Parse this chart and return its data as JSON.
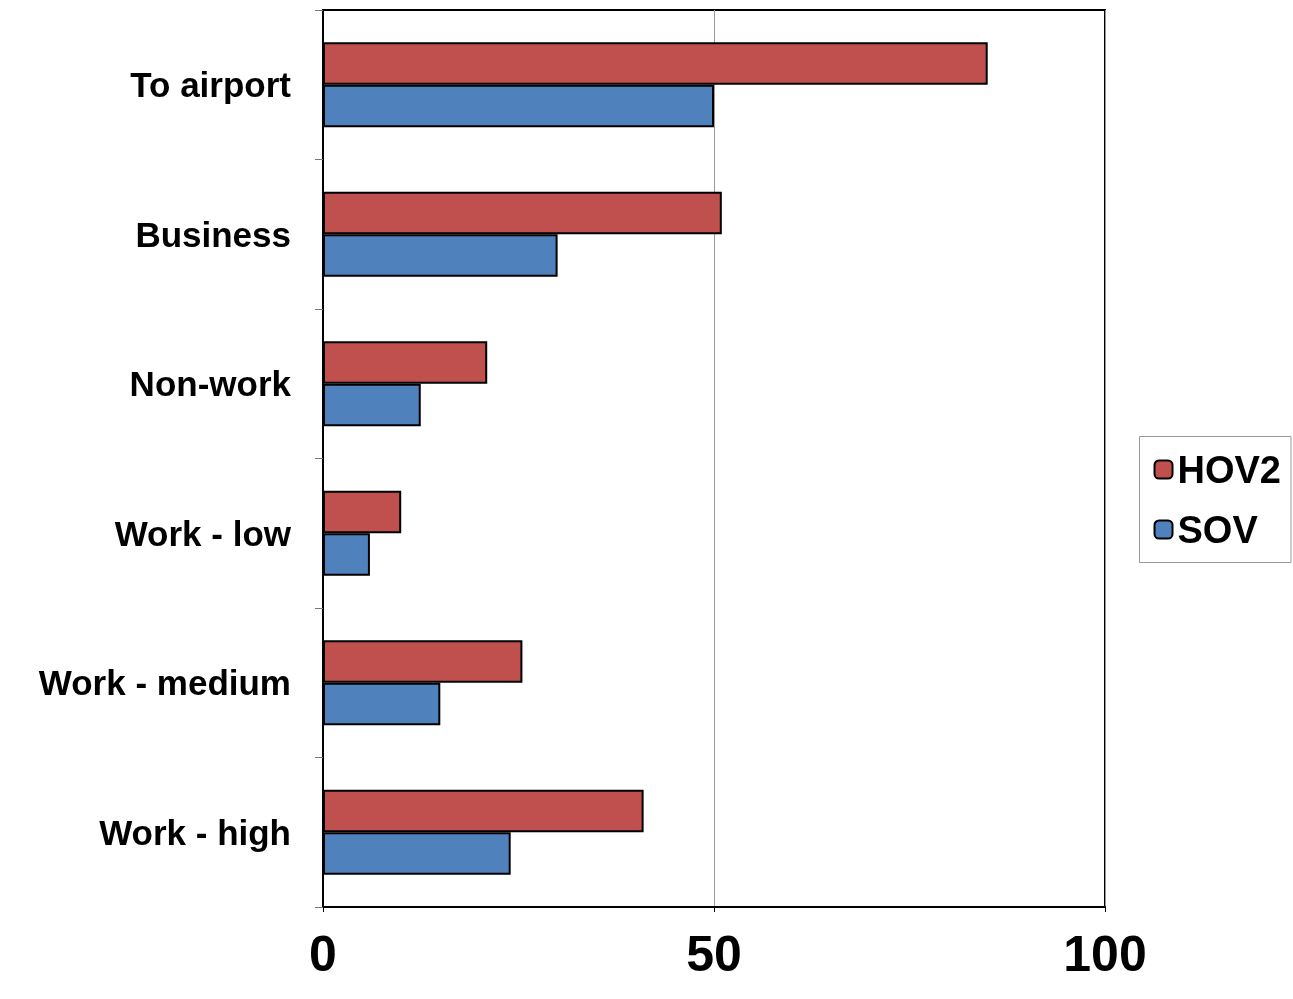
{
  "chart_data": {
    "type": "bar",
    "orientation": "horizontal",
    "categories": [
      "To airport",
      "Business",
      "Non-work",
      "Work - low",
      "Work - medium",
      "Work - high"
    ],
    "series": [
      {
        "name": "HOV2",
        "color": "#c0504d",
        "values": [
          85,
          51,
          21,
          10,
          25.5,
          41
        ]
      },
      {
        "name": "SOV",
        "color": "#4f81bd",
        "values": [
          50,
          30,
          12.5,
          6,
          15,
          24
        ]
      }
    ],
    "xlim": [
      0,
      100
    ],
    "xticks": [
      0,
      50,
      100
    ],
    "grid": "x",
    "legend": "right"
  }
}
